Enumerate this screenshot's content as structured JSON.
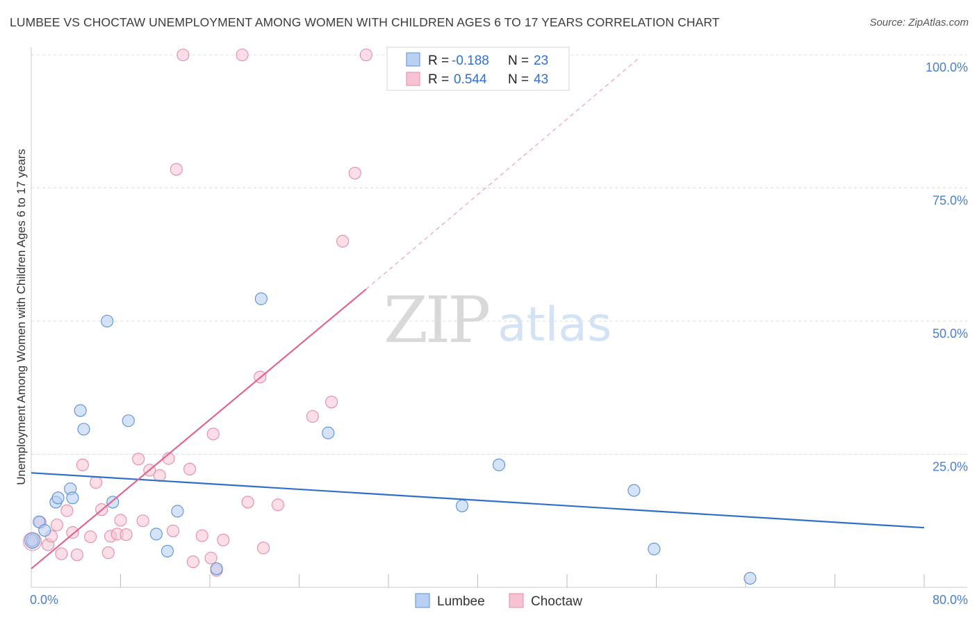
{
  "header": {
    "title": "LUMBEE VS CHOCTAW UNEMPLOYMENT AMONG WOMEN WITH CHILDREN AGES 6 TO 17 YEARS CORRELATION CHART",
    "source": "Source: ZipAtlas.com"
  },
  "watermark": {
    "zip": "ZIP",
    "atlas": "atlas"
  },
  "colors": {
    "lumbee_fill": "#b9d0f3",
    "lumbee_stroke": "#5b8fd6",
    "lumbee_line": "#2f6fc9",
    "choctaw_fill": "#f7c3d2",
    "choctaw_stroke": "#e58ba6",
    "choctaw_line": "#e0668f",
    "tick_text": "#4a7fd0",
    "grid": "#dddddd"
  },
  "legend": {
    "rows": [
      {
        "r_label": "R =",
        "r_value": "-0.188",
        "n_label": "N =",
        "n_value": "23"
      },
      {
        "r_label": "R =",
        "r_value": "0.544",
        "n_label": "N =",
        "n_value": "43"
      }
    ]
  },
  "chart_data": {
    "type": "scatter",
    "title": "LUMBEE VS CHOCTAW UNEMPLOYMENT AMONG WOMEN WITH CHILDREN AGES 6 TO 17 YEARS CORRELATION CHART",
    "xlabel": "",
    "ylabel": "Unemployment Among Women with Children Ages 6 to 17 years",
    "xlim": [
      0,
      80
    ],
    "ylim": [
      0,
      103
    ],
    "y_ticks": [
      {
        "value": 100,
        "label": "100.0%"
      },
      {
        "value": 75,
        "label": "75.0%"
      },
      {
        "value": 50,
        "label": "50.0%"
      },
      {
        "value": 25,
        "label": "25.0%"
      }
    ],
    "x_tick_labels": [
      {
        "value": 0,
        "label": "0.0%"
      },
      {
        "value": 80,
        "label": "80.0%"
      }
    ],
    "x_minor_ticks": [
      8,
      16,
      24,
      32,
      40,
      48,
      56,
      64,
      72,
      80
    ],
    "series": [
      {
        "name": "Lumbee",
        "r": -0.188,
        "n": 23,
        "trend": {
          "x0": 0,
          "y0": 21.5,
          "x1": 80,
          "y1": 11.2
        },
        "points": [
          [
            0.1,
            8.8
          ],
          [
            0.7,
            12.3
          ],
          [
            1.2,
            10.7
          ],
          [
            2.2,
            16.0
          ],
          [
            2.4,
            16.8
          ],
          [
            3.5,
            18.5
          ],
          [
            3.7,
            16.8
          ],
          [
            4.4,
            33.2
          ],
          [
            4.7,
            29.7
          ],
          [
            6.8,
            50.0
          ],
          [
            7.3,
            16.0
          ],
          [
            8.7,
            31.3
          ],
          [
            11.2,
            10.0
          ],
          [
            12.2,
            6.8
          ],
          [
            13.1,
            14.3
          ],
          [
            16.6,
            3.5
          ],
          [
            20.6,
            54.2
          ],
          [
            26.6,
            29.0
          ],
          [
            38.6,
            15.3
          ],
          [
            41.9,
            23.0
          ],
          [
            54.0,
            18.2
          ],
          [
            55.8,
            7.2
          ],
          [
            64.4,
            1.7
          ]
        ]
      },
      {
        "name": "Choctaw",
        "r": 0.544,
        "n": 43,
        "trend": {
          "x0": 0,
          "y0": 3.5,
          "x1": 30.0,
          "y1": 56.0
        },
        "trend_extension": {
          "x0": 30.0,
          "y0": 56.0,
          "x1": 54.5,
          "y1": 99.5
        },
        "points": [
          [
            0.1,
            8.4
          ],
          [
            0.8,
            12.2
          ],
          [
            1.5,
            8.0
          ],
          [
            1.8,
            9.6
          ],
          [
            2.3,
            11.7
          ],
          [
            2.7,
            6.3
          ],
          [
            3.2,
            14.4
          ],
          [
            3.7,
            10.3
          ],
          [
            4.1,
            6.1
          ],
          [
            4.6,
            23.0
          ],
          [
            5.3,
            9.5
          ],
          [
            5.8,
            19.7
          ],
          [
            6.3,
            14.6
          ],
          [
            6.9,
            6.5
          ],
          [
            7.1,
            9.6
          ],
          [
            7.7,
            10.0
          ],
          [
            8.0,
            12.6
          ],
          [
            8.5,
            9.9
          ],
          [
            9.6,
            24.1
          ],
          [
            10.0,
            12.5
          ],
          [
            10.6,
            22.0
          ],
          [
            11.5,
            21.0
          ],
          [
            12.3,
            24.2
          ],
          [
            12.7,
            10.6
          ],
          [
            13.0,
            78.5
          ],
          [
            13.6,
            100.0
          ],
          [
            14.2,
            22.2
          ],
          [
            14.5,
            4.8
          ],
          [
            15.3,
            9.7
          ],
          [
            16.1,
            5.5
          ],
          [
            16.3,
            28.8
          ],
          [
            16.6,
            3.2
          ],
          [
            17.2,
            8.9
          ],
          [
            18.9,
            100.0
          ],
          [
            19.4,
            16.0
          ],
          [
            20.5,
            39.5
          ],
          [
            20.8,
            7.4
          ],
          [
            22.1,
            15.5
          ],
          [
            25.2,
            32.1
          ],
          [
            26.9,
            34.8
          ],
          [
            27.9,
            65.0
          ],
          [
            29.0,
            77.8
          ],
          [
            30.0,
            100.0
          ]
        ]
      }
    ],
    "bottom_legend": [
      "Lumbee",
      "Choctaw"
    ]
  }
}
